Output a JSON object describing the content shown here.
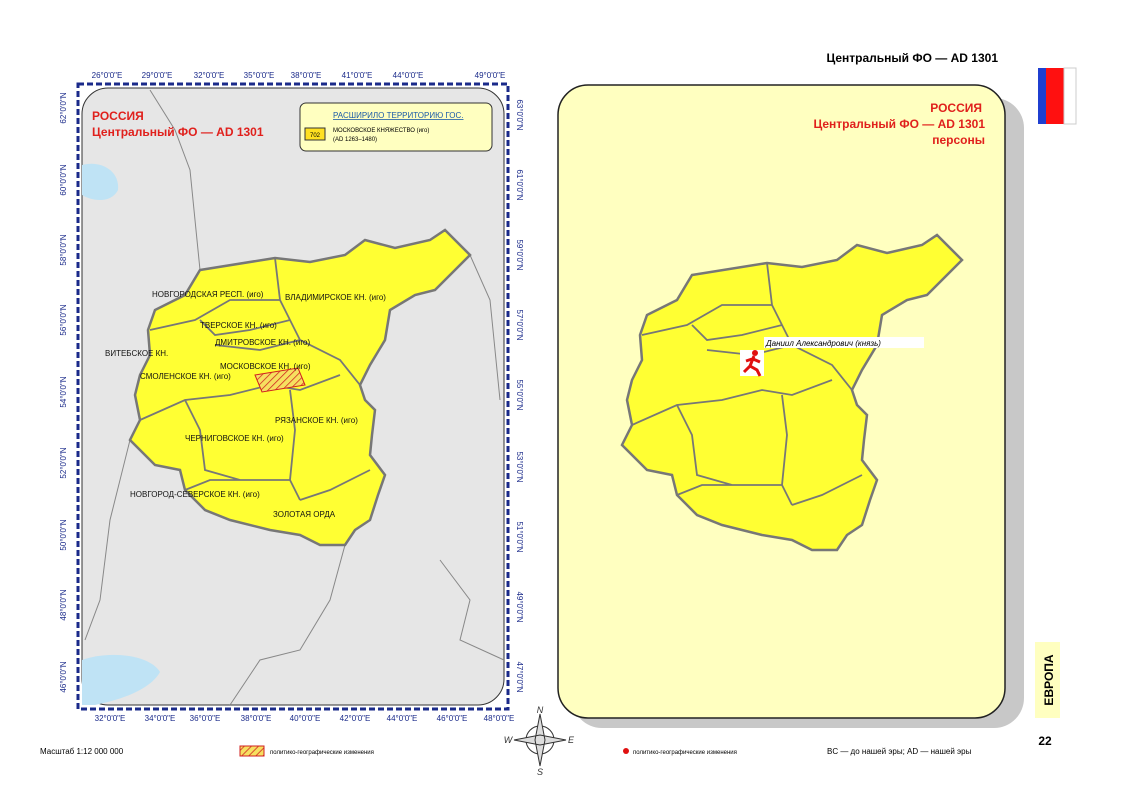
{
  "header": {
    "title": "Центральный ФО — AD 1301"
  },
  "left_map": {
    "title": [
      "РОССИЯ",
      "Центральный ФО — AD 1301"
    ],
    "legend": {
      "heading": "РАСШИРИЛО ТЕРРИТОРИЮ ГОС.",
      "code": "702",
      "name": "МОСКОВСКОЕ КНЯЖЕСТВО (иго)",
      "period": "(AD 1263–1480)"
    },
    "regions": [
      "НОВГОРОДСКАЯ РЕСП. (иго)",
      "ВЛАДИМИРСКОЕ КН. (иго)",
      "ТВЕРСКОЕ КН. (иго)",
      "ДМИТРОВСКОЕ КН. (иго)",
      "ВИТЕБСКОЕ КН.",
      "МОСКОВСКОЕ КН. (иго)",
      "СМОЛЕНСКОЕ КН. (иго)",
      "РЯЗАНСКОЕ КН. (иго)",
      "ЧЕРНИГОВСКОЕ КН. (иго)",
      "НОВГОРОД-СЕВЕРСКОЕ КН. (иго)",
      "ЗОЛОТАЯ ОРДА"
    ],
    "top_labels": [
      "26°0'0\"E",
      "29°0'0\"E",
      "32°0'0\"E",
      "35°0'0\"E",
      "38°0'0\"E",
      "41°0'0\"E",
      "44°0'0\"E",
      "49°0'0\"E"
    ],
    "bottom_labels": [
      "32°0'0\"E",
      "34°0'0\"E",
      "36°0'0\"E",
      "38°0'0\"E",
      "40°0'0\"E",
      "42°0'0\"E",
      "44°0'0\"E",
      "46°0'0\"E",
      "48°0'0\"E"
    ],
    "left_labels": [
      "62°0'0\"N",
      "60°0'0\"N",
      "58°0'0\"N",
      "56°0'0\"N",
      "54°0'0\"N",
      "52°0'0\"N",
      "50°0'0\"N",
      "48°0'0\"N",
      "46°0'0\"N"
    ],
    "right_labels": [
      "63°0'0\"N",
      "61°0'0\"N",
      "59°0'0\"N",
      "57°0'0\"N",
      "55°0'0\"N",
      "53°0'0\"N",
      "51°0'0\"N",
      "49°0'0\"N",
      "47°0'0\"N"
    ]
  },
  "right_map": {
    "title": [
      "РОССИЯ",
      "Центральный ФО — AD 1301",
      "персоны"
    ],
    "person": "Даниил Александрович (князь)"
  },
  "compass": [
    "N",
    "W",
    "E",
    "S"
  ],
  "footer": {
    "scale": "Масштаб 1:12 000 000",
    "left_legend": "политико-географические изменения",
    "right_legend": "политико-географические изменения",
    "note": "BC — до нашей эры; AD — нашей эры",
    "page": "22",
    "section": "ЕВРОПА"
  }
}
